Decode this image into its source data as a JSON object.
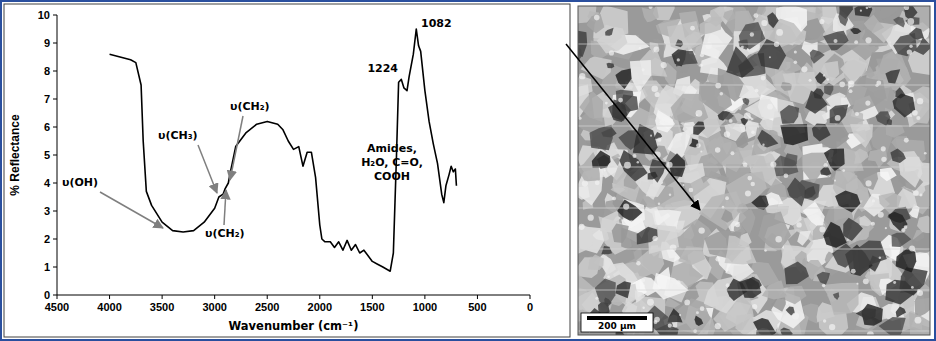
{
  "chart_data": {
    "type": "line",
    "x_label": "Wavenumber (cm⁻¹)",
    "y_label": "% Reflectance",
    "x": [
      4000,
      3900,
      3800,
      3750,
      3700,
      3680,
      3650,
      3600,
      3500,
      3400,
      3300,
      3200,
      3100,
      3000,
      2960,
      2920,
      2900,
      2870,
      2850,
      2800,
      2700,
      2600,
      2500,
      2400,
      2350,
      2300,
      2250,
      2200,
      2160,
      2120,
      2080,
      2040,
      2000,
      1980,
      1950,
      1900,
      1860,
      1820,
      1780,
      1740,
      1700,
      1660,
      1620,
      1580,
      1500,
      1450,
      1400,
      1330,
      1300,
      1270,
      1250,
      1224,
      1200,
      1170,
      1150,
      1110,
      1082,
      1060,
      1040,
      1000,
      960,
      920,
      880,
      840,
      820,
      800,
      770,
      750,
      730,
      710,
      700
    ],
    "values": [
      8.6,
      8.5,
      8.4,
      8.3,
      7.5,
      5.5,
      3.7,
      3.2,
      2.6,
      2.3,
      2.25,
      2.3,
      2.6,
      3.1,
      3.5,
      3.6,
      3.8,
      4.0,
      4.4,
      5.3,
      5.8,
      6.1,
      6.2,
      6.1,
      5.9,
      5.5,
      5.2,
      5.3,
      4.6,
      5.1,
      5.1,
      4.2,
      2.5,
      2.0,
      1.9,
      1.9,
      1.7,
      1.9,
      1.6,
      1.95,
      1.6,
      1.8,
      1.5,
      1.6,
      1.2,
      1.1,
      1.0,
      0.85,
      1.5,
      5.0,
      7.6,
      7.7,
      7.4,
      7.3,
      7.8,
      8.6,
      9.5,
      8.9,
      8.7,
      7.3,
      6.2,
      5.4,
      4.7,
      3.6,
      3.3,
      3.9,
      4.3,
      4.6,
      4.4,
      4.5,
      3.9
    ],
    "color": "#000000",
    "xlim": [
      4500,
      0
    ],
    "ylim": [
      0,
      10
    ],
    "xticks": [
      4500,
      4000,
      3500,
      3000,
      2500,
      2000,
      1500,
      1000,
      500,
      0
    ],
    "yticks": [
      0,
      1,
      2,
      3,
      4,
      5,
      6,
      7,
      8,
      9,
      10
    ],
    "grid": false,
    "annotations": [
      {
        "text": "υ(OH)"
      },
      {
        "text": "υ(CH₃)"
      },
      {
        "text": "υ(CH₂)"
      },
      {
        "text": "υ(CH₂)"
      },
      {
        "text": "Amides, H₂O, C=O, COOH"
      },
      {
        "text": "1224"
      },
      {
        "text": "1082"
      }
    ]
  },
  "image": {
    "scale_bar": "200 μm"
  }
}
